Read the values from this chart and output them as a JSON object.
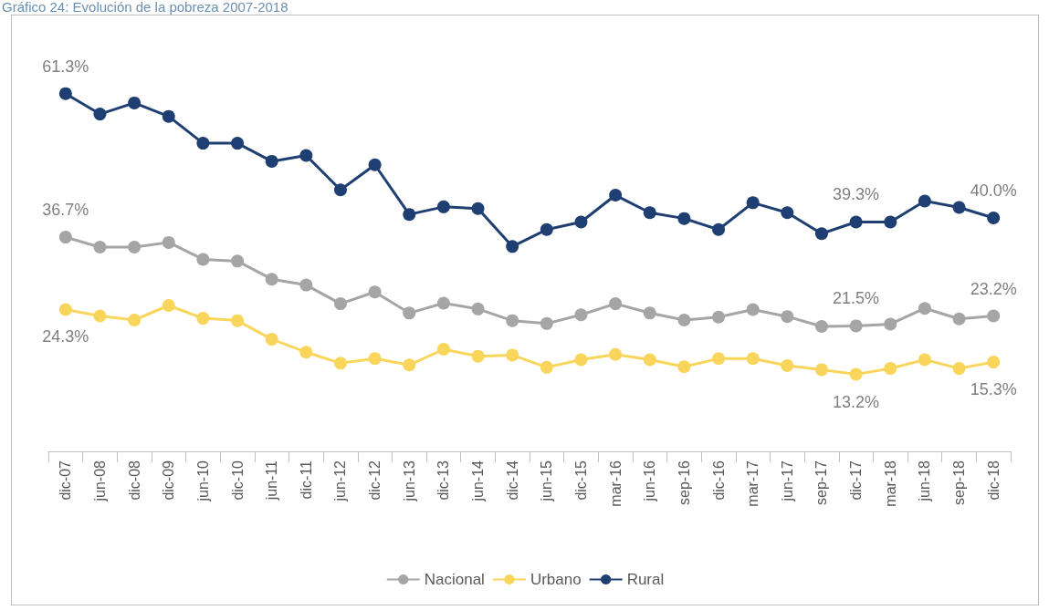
{
  "chart_data": {
    "type": "line",
    "title": "Gráfico 24: Evolución de la pobreza 2007-2018",
    "categories": [
      "dic-07",
      "jun-08",
      "dic-08",
      "dic-09",
      "jun-10",
      "dic-10",
      "jun-11",
      "dic-11",
      "jun-12",
      "dic-12",
      "jun-13",
      "dic-13",
      "jun-14",
      "dic-14",
      "jun-15",
      "dic-15",
      "mar-16",
      "jun-16",
      "sep-16",
      "dic-16",
      "mar-17",
      "jun-17",
      "sep-17",
      "dic-17",
      "mar-18",
      "jun-18",
      "sep-18",
      "dic-18"
    ],
    "tick_labels": "x",
    "grid": false,
    "legend": "bottom",
    "marker": "circle",
    "line_style": "solid",
    "series": [
      {
        "name": "Nacional",
        "color": "#a5a5a5",
        "values": [
          36.7,
          35.0,
          35.0,
          35.8,
          32.9,
          32.6,
          29.5,
          28.5,
          25.3,
          27.3,
          23.7,
          25.4,
          24.4,
          22.4,
          21.9,
          23.4,
          25.3,
          23.7,
          22.5,
          23.0,
          24.3,
          23.1,
          21.4,
          21.5,
          21.8,
          24.5,
          22.7,
          23.2
        ],
        "value_labels": [
          "36.7%",
          null,
          null,
          null,
          null,
          null,
          null,
          null,
          null,
          null,
          null,
          null,
          null,
          null,
          null,
          null,
          null,
          null,
          null,
          null,
          null,
          null,
          null,
          "21.5%",
          null,
          null,
          null,
          "23.2%"
        ]
      },
      {
        "name": "Urbano",
        "color": "#f9d65b",
        "values": [
          24.3,
          23.2,
          22.5,
          25.0,
          22.8,
          22.4,
          19.2,
          17.0,
          15.1,
          15.9,
          14.8,
          17.5,
          16.3,
          16.5,
          14.4,
          15.7,
          16.6,
          15.7,
          14.5,
          15.9,
          15.9,
          14.7,
          14.0,
          13.2,
          14.2,
          15.7,
          14.2,
          15.3
        ],
        "value_labels": [
          "24.3%",
          null,
          null,
          null,
          null,
          null,
          null,
          null,
          null,
          null,
          null,
          null,
          null,
          null,
          null,
          null,
          null,
          null,
          null,
          null,
          null,
          null,
          null,
          "13.2%",
          null,
          null,
          null,
          "15.3%"
        ]
      },
      {
        "name": "Rural",
        "color": "#1f3f73",
        "values": [
          61.3,
          57.8,
          59.7,
          57.4,
          52.8,
          52.8,
          49.7,
          50.7,
          44.8,
          49.1,
          40.6,
          41.9,
          41.6,
          35.1,
          38.0,
          39.3,
          43.9,
          40.9,
          39.9,
          38.0,
          42.6,
          40.9,
          37.3,
          39.3,
          39.3,
          42.9,
          41.8,
          40.0
        ],
        "value_labels": [
          "61.3%",
          null,
          null,
          null,
          null,
          null,
          null,
          null,
          null,
          null,
          null,
          null,
          null,
          null,
          null,
          null,
          null,
          null,
          null,
          null,
          null,
          null,
          null,
          "39.3%",
          null,
          null,
          null,
          "40.0%"
        ]
      }
    ]
  }
}
